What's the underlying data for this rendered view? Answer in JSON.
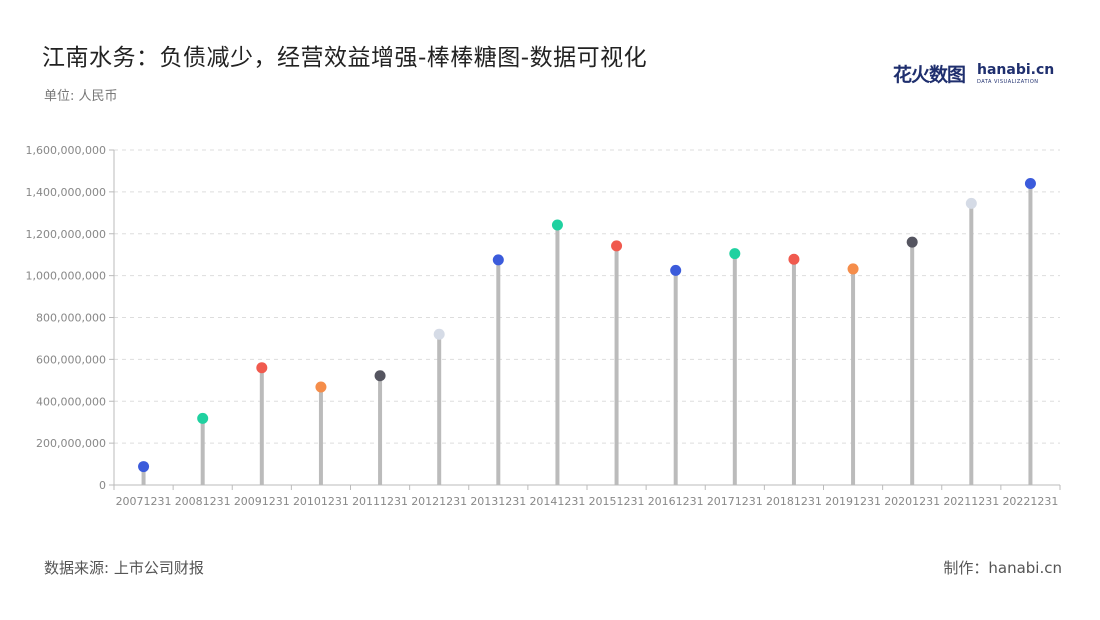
{
  "title": "江南水务：负债减少，经营效益增强-棒棒糖图-数据可视化",
  "unit_label": "单位: 人民币",
  "logo": {
    "cn": "花火数图",
    "en": "hanabi.cn",
    "sub": "DATA VISUALIZATION"
  },
  "source": "数据来源: 上市公司财报",
  "credit": "制作：hanabi.cn",
  "chart_data": {
    "type": "lollipop",
    "title": "",
    "xlabel": "",
    "ylabel": "",
    "categories": [
      "20071231",
      "20081231",
      "20091231",
      "20101231",
      "20111231",
      "20121231",
      "20131231",
      "20141231",
      "20151231",
      "20161231",
      "20171231",
      "20181231",
      "20191231",
      "20201231",
      "20211231",
      "20221231"
    ],
    "values": [
      88000000,
      318000000,
      560000000,
      468000000,
      522000000,
      720000000,
      1075000000,
      1242000000,
      1142000000,
      1025000000,
      1105000000,
      1078000000,
      1032000000,
      1160000000,
      1345000000,
      1440000000
    ],
    "dot_colors": [
      "#3b5bdb",
      "#1fd1a0",
      "#f05a4e",
      "#f58d4a",
      "#555560",
      "#d5dbe6",
      "#3b5bdb",
      "#1fd1a0",
      "#f05a4e",
      "#3b5bdb",
      "#1fd1a0",
      "#f05a4e",
      "#f58d4a",
      "#555560",
      "#d5dbe6",
      "#3b5bdb"
    ],
    "stem_color": "#bbbbbb",
    "ylim": [
      0,
      1600000000
    ],
    "yticks": [
      0,
      200000000,
      400000000,
      600000000,
      800000000,
      1000000000,
      1200000000,
      1400000000,
      1600000000
    ],
    "ytick_labels": [
      "0",
      "200,000,000",
      "400,000,000",
      "600,000,000",
      "800,000,000",
      "1,000,000,000",
      "1,200,000,000",
      "1,400,000,000",
      "1,600,000,000"
    ],
    "grid": true
  }
}
